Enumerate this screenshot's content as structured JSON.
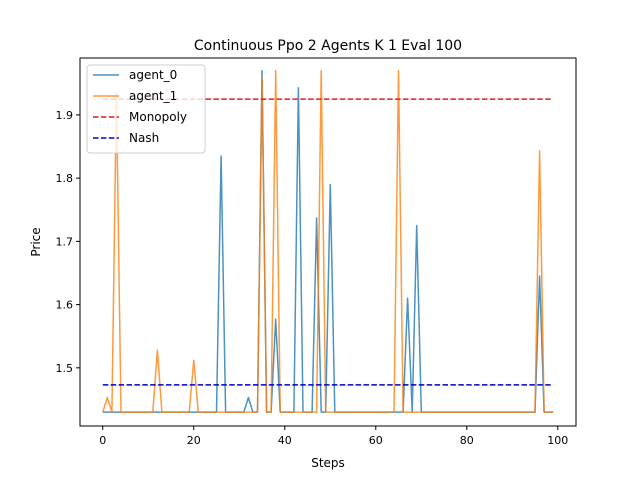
{
  "chart_data": {
    "type": "line",
    "title": "Continuous Ppo 2 Agents K 1 Eval 100",
    "xlabel": "Steps",
    "ylabel": "Price",
    "xlim": [
      -5,
      104
    ],
    "ylim": [
      1.408,
      1.99
    ],
    "xticks": [
      0,
      20,
      40,
      60,
      80,
      100
    ],
    "yticks": [
      1.5,
      1.6,
      1.7,
      1.8,
      1.9
    ],
    "ytick_labels": [
      "1.5",
      "1.6",
      "1.7",
      "1.8",
      "1.9"
    ],
    "legend_position": "top-left",
    "grid": false,
    "series": [
      {
        "name": "agent_0",
        "color": "#1f77b4",
        "points": [
          [
            0,
            1.43
          ],
          [
            3,
            1.43
          ],
          [
            4,
            1.43
          ],
          [
            25,
            1.43
          ],
          [
            26,
            1.835
          ],
          [
            27,
            1.43
          ],
          [
            31,
            1.43
          ],
          [
            32,
            1.453
          ],
          [
            33,
            1.43
          ],
          [
            34,
            1.43
          ],
          [
            35,
            1.97
          ],
          [
            36,
            1.43
          ],
          [
            37,
            1.43
          ],
          [
            38,
            1.577
          ],
          [
            39,
            1.43
          ],
          [
            42,
            1.43
          ],
          [
            43,
            1.943
          ],
          [
            44,
            1.43
          ],
          [
            46,
            1.43
          ],
          [
            47,
            1.737
          ],
          [
            48,
            1.43
          ],
          [
            49,
            1.43
          ],
          [
            50,
            1.79
          ],
          [
            51,
            1.43
          ],
          [
            66,
            1.43
          ],
          [
            67,
            1.61
          ],
          [
            68,
            1.43
          ],
          [
            69,
            1.725
          ],
          [
            70,
            1.43
          ],
          [
            95,
            1.43
          ],
          [
            96,
            1.645
          ],
          [
            97,
            1.43
          ],
          [
            99,
            1.43
          ]
        ]
      },
      {
        "name": "agent_1",
        "color": "#ff7f0e",
        "points": [
          [
            0,
            1.43
          ],
          [
            1,
            1.453
          ],
          [
            2,
            1.43
          ],
          [
            3,
            1.935
          ],
          [
            4,
            1.43
          ],
          [
            11,
            1.43
          ],
          [
            12,
            1.528
          ],
          [
            13,
            1.43
          ],
          [
            19,
            1.43
          ],
          [
            20,
            1.512
          ],
          [
            21,
            1.43
          ],
          [
            33,
            1.43
          ],
          [
            34,
            1.43
          ],
          [
            35,
            1.958
          ],
          [
            36,
            1.43
          ],
          [
            37,
            1.43
          ],
          [
            38,
            1.97
          ],
          [
            39,
            1.43
          ],
          [
            47,
            1.43
          ],
          [
            48,
            1.97
          ],
          [
            49,
            1.43
          ],
          [
            64,
            1.43
          ],
          [
            65,
            1.97
          ],
          [
            66,
            1.43
          ],
          [
            95,
            1.43
          ],
          [
            96,
            1.843
          ],
          [
            97,
            1.43
          ],
          [
            99,
            1.43
          ]
        ]
      },
      {
        "name": "Monopoly",
        "color": "#e41a1c",
        "dashed": true,
        "points": [
          [
            0,
            1.925
          ],
          [
            99,
            1.925
          ]
        ]
      },
      {
        "name": "Nash",
        "color": "#0000cc",
        "dashed": true,
        "points": [
          [
            0,
            1.473
          ],
          [
            99,
            1.473
          ]
        ]
      }
    ]
  }
}
